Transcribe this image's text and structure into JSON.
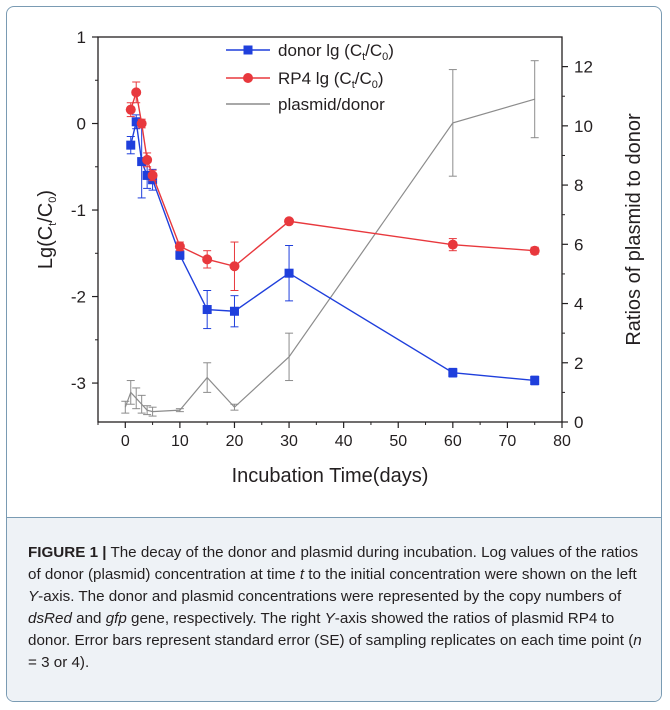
{
  "chart_data": {
    "type": "line",
    "xlabel": "Incubation Time(days)",
    "ylabel_left_parts": [
      "Lg(C",
      "t",
      "/C",
      "0",
      ")"
    ],
    "ylabel_right": "Ratios of plasmid to donor",
    "xlim": [
      -5,
      80
    ],
    "ylim_left": [
      -3.45,
      1.0
    ],
    "ylim_right": [
      0,
      13
    ],
    "x_ticks": [
      0,
      10,
      20,
      30,
      40,
      50,
      60,
      70,
      80
    ],
    "y_left_ticks": [
      1,
      0,
      -1,
      -2,
      -3
    ],
    "y_right_ticks": [
      0,
      2,
      4,
      6,
      8,
      10,
      12
    ],
    "legend_position": "top-center",
    "series": [
      {
        "name_parts": [
          "donor lg (C",
          "t",
          "/C",
          "0",
          ")"
        ],
        "color": "#1f3fdc",
        "marker": "square",
        "axis": "left",
        "x": [
          1,
          2,
          3,
          4,
          5,
          10,
          15,
          20,
          30,
          60,
          75
        ],
        "y": [
          -0.25,
          0.02,
          -0.44,
          -0.6,
          -0.65,
          -1.52,
          -2.15,
          -2.17,
          -1.73,
          -2.88,
          -2.97
        ],
        "err": [
          0.1,
          0.08,
          0.42,
          0.15,
          0.12,
          0.05,
          0.22,
          0.18,
          0.32,
          0.05,
          0.05
        ]
      },
      {
        "name_parts": [
          "RP4 lg (C",
          "t",
          "/C",
          "0",
          ")"
        ],
        "color": "#e8383d",
        "marker": "circle",
        "axis": "left",
        "x": [
          1,
          2,
          3,
          4,
          5,
          10,
          15,
          20,
          30,
          60,
          75
        ],
        "y": [
          0.16,
          0.36,
          0.0,
          -0.42,
          -0.6,
          -1.42,
          -1.57,
          -1.65,
          -1.13,
          -1.4,
          -1.47
        ],
        "err": [
          0.08,
          0.12,
          0.05,
          0.08,
          0.06,
          0.05,
          0.1,
          0.28,
          0.03,
          0.07,
          0.04
        ]
      },
      {
        "name": "plasmid/donor",
        "color": "#8c8c8c",
        "marker": "none",
        "axis": "right",
        "x": [
          0,
          1,
          2,
          3,
          4,
          5,
          10,
          15,
          20,
          30,
          60,
          75
        ],
        "y": [
          0.5,
          1.0,
          0.8,
          0.6,
          0.4,
          0.35,
          0.4,
          1.5,
          0.5,
          2.2,
          10.1,
          10.9
        ],
        "err": [
          0.2,
          0.4,
          0.35,
          0.3,
          0.15,
          0.15,
          0.05,
          0.5,
          0.1,
          0.8,
          1.8,
          1.3
        ]
      }
    ]
  },
  "caption": {
    "label": "FIGURE 1 |",
    "segments": [
      {
        "t": " The decay of the donor and plasmid during incubation. Log values of the ratios of donor (plasmid) concentration at time ",
        "i": false
      },
      {
        "t": "t",
        "i": true
      },
      {
        "t": " to the initial concentration were shown on the left ",
        "i": false
      },
      {
        "t": "Y",
        "i": true
      },
      {
        "t": "-axis. The donor and plasmid concentrations were represented by the copy numbers of ",
        "i": false
      },
      {
        "t": "dsRed",
        "i": true
      },
      {
        "t": " and ",
        "i": false
      },
      {
        "t": "gfp",
        "i": true
      },
      {
        "t": " gene, respectively. The right ",
        "i": false
      },
      {
        "t": "Y",
        "i": true
      },
      {
        "t": "-axis showed the ratios of plasmid RP4 to donor. Error bars represent standard error (SE) of sampling replicates on each time point (",
        "i": false
      },
      {
        "t": "n",
        "i": true
      },
      {
        "t": " = 3 or 4).",
        "i": false
      }
    ]
  }
}
